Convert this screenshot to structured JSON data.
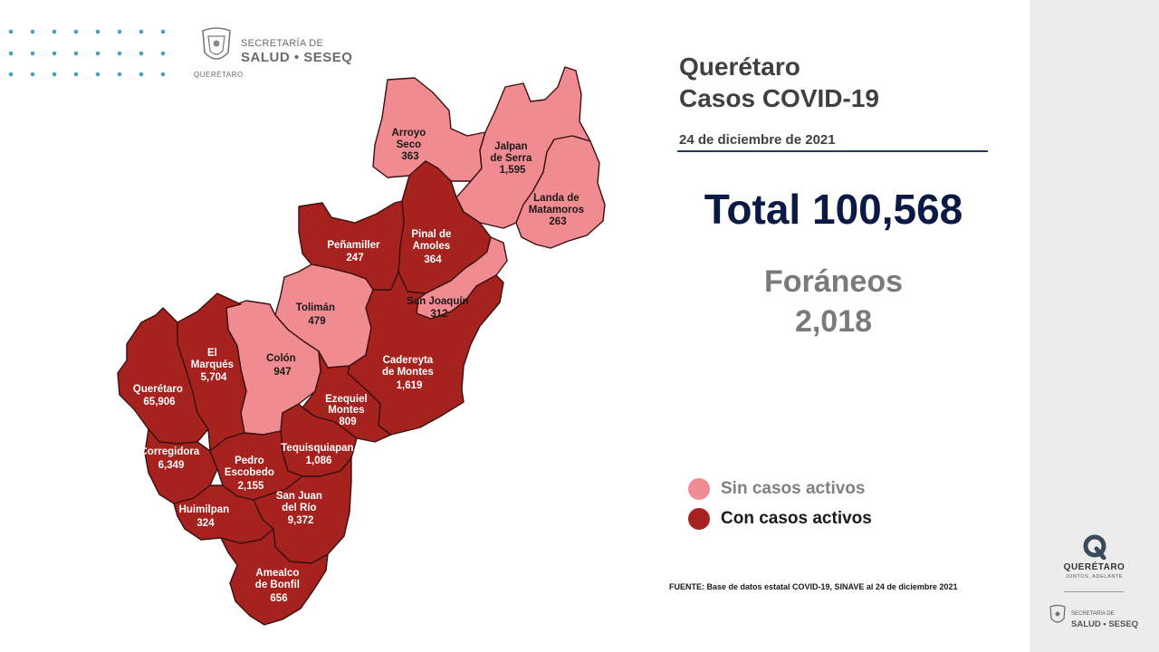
{
  "branding": {
    "top_line1": "SECRETARÍA DE",
    "top_line2": "SALUD • SESEQ",
    "top_line3": "QUERÉTARO",
    "side_name": "QUERÉTARO",
    "side_tagline": "JUNTOS, ADELANTE",
    "side_line1": "SECRETARÍA DE",
    "side_line2": "SALUD • SESEQ"
  },
  "header": {
    "title_line1": "Querétaro",
    "title_line2": "Casos COVID-19",
    "date": "24 de diciembre de 2021"
  },
  "summary": {
    "total": "Total 100,568",
    "foraneos_label": "Foráneos",
    "foraneos_value": "2,018"
  },
  "legend": {
    "inactive": {
      "label": "Sin casos activos",
      "color": "#f18b92"
    },
    "active": {
      "label": "Con casos activos",
      "color": "#a5221e"
    }
  },
  "municipalities": [
    {
      "name_lines": [
        "Arroyo",
        "Seco"
      ],
      "cases": "363",
      "active": false
    },
    {
      "name_lines": [
        "Jalpan",
        "de Serra"
      ],
      "cases": "1,595",
      "active": false
    },
    {
      "name_lines": [
        "Landa de",
        "Matamoros"
      ],
      "cases": "263",
      "active": false
    },
    {
      "name_lines": [
        "Pinal de",
        "Amoles"
      ],
      "cases": "364",
      "active": true
    },
    {
      "name_lines": [
        "Peñamiller"
      ],
      "cases": "247",
      "active": true
    },
    {
      "name_lines": [
        "San Joaquín"
      ],
      "cases": "312",
      "active": false
    },
    {
      "name_lines": [
        "Tolimán"
      ],
      "cases": "479",
      "active": false
    },
    {
      "name_lines": [
        "Colón"
      ],
      "cases": "947",
      "active": false
    },
    {
      "name_lines": [
        "Cadereyta",
        "de Montes"
      ],
      "cases": "1,619",
      "active": true
    },
    {
      "name_lines": [
        "El",
        "Marqués"
      ],
      "cases": "5,704",
      "active": true
    },
    {
      "name_lines": [
        "Querétaro"
      ],
      "cases": "65,906",
      "active": true
    },
    {
      "name_lines": [
        "Ezequiel",
        "Montes"
      ],
      "cases": "809",
      "active": true
    },
    {
      "name_lines": [
        "Tequisquiapan"
      ],
      "cases": "1,086",
      "active": true
    },
    {
      "name_lines": [
        "Corregidora"
      ],
      "cases": "6,349",
      "active": true
    },
    {
      "name_lines": [
        "Pedro",
        "Escobedo"
      ],
      "cases": "2,155",
      "active": true
    },
    {
      "name_lines": [
        "San Juan",
        "del Río"
      ],
      "cases": "9,372",
      "active": true
    },
    {
      "name_lines": [
        "Huimilpan"
      ],
      "cases": "324",
      "active": true
    },
    {
      "name_lines": [
        "Amealco",
        "de Bonfil"
      ],
      "cases": "656",
      "active": true
    }
  ],
  "source": "FUENTE: Base de datos estatal COVID-19, SINAVE al 24 de diciembre 2021"
}
